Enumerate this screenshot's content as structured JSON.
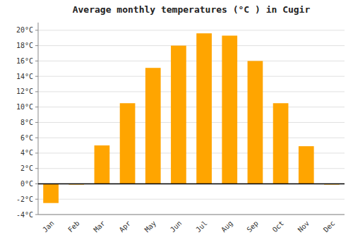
{
  "chart_data": {
    "type": "bar",
    "title": "Average monthly temperatures (°C ) in Cugir",
    "categories": [
      "Jan",
      "Feb",
      "Mar",
      "Apr",
      "May",
      "Jun",
      "Jul",
      "Aug",
      "Sep",
      "Oct",
      "Nov",
      "Dec"
    ],
    "values": [
      -2.5,
      -0.1,
      5.0,
      10.5,
      15.1,
      18.0,
      19.6,
      19.3,
      16.0,
      10.5,
      4.9,
      -0.1
    ],
    "color": "#FFA500",
    "ylim": [
      -4,
      21
    ],
    "yticks": [
      {
        "value": -4,
        "label": "-4°C"
      },
      {
        "value": -2,
        "label": "-2°C"
      },
      {
        "value": 0,
        "label": "0°C"
      },
      {
        "value": 2,
        "label": "2°C"
      },
      {
        "value": 4,
        "label": "4°C"
      },
      {
        "value": 6,
        "label": "6°C"
      },
      {
        "value": 8,
        "label": "8°C"
      },
      {
        "value": 10,
        "label": "10°C"
      },
      {
        "value": 12,
        "label": "12°C"
      },
      {
        "value": 14,
        "label": "14°C"
      },
      {
        "value": 16,
        "label": "16°C"
      },
      {
        "value": 18,
        "label": "18°C"
      },
      {
        "value": 20,
        "label": "20°C"
      }
    ],
    "grid": true
  }
}
